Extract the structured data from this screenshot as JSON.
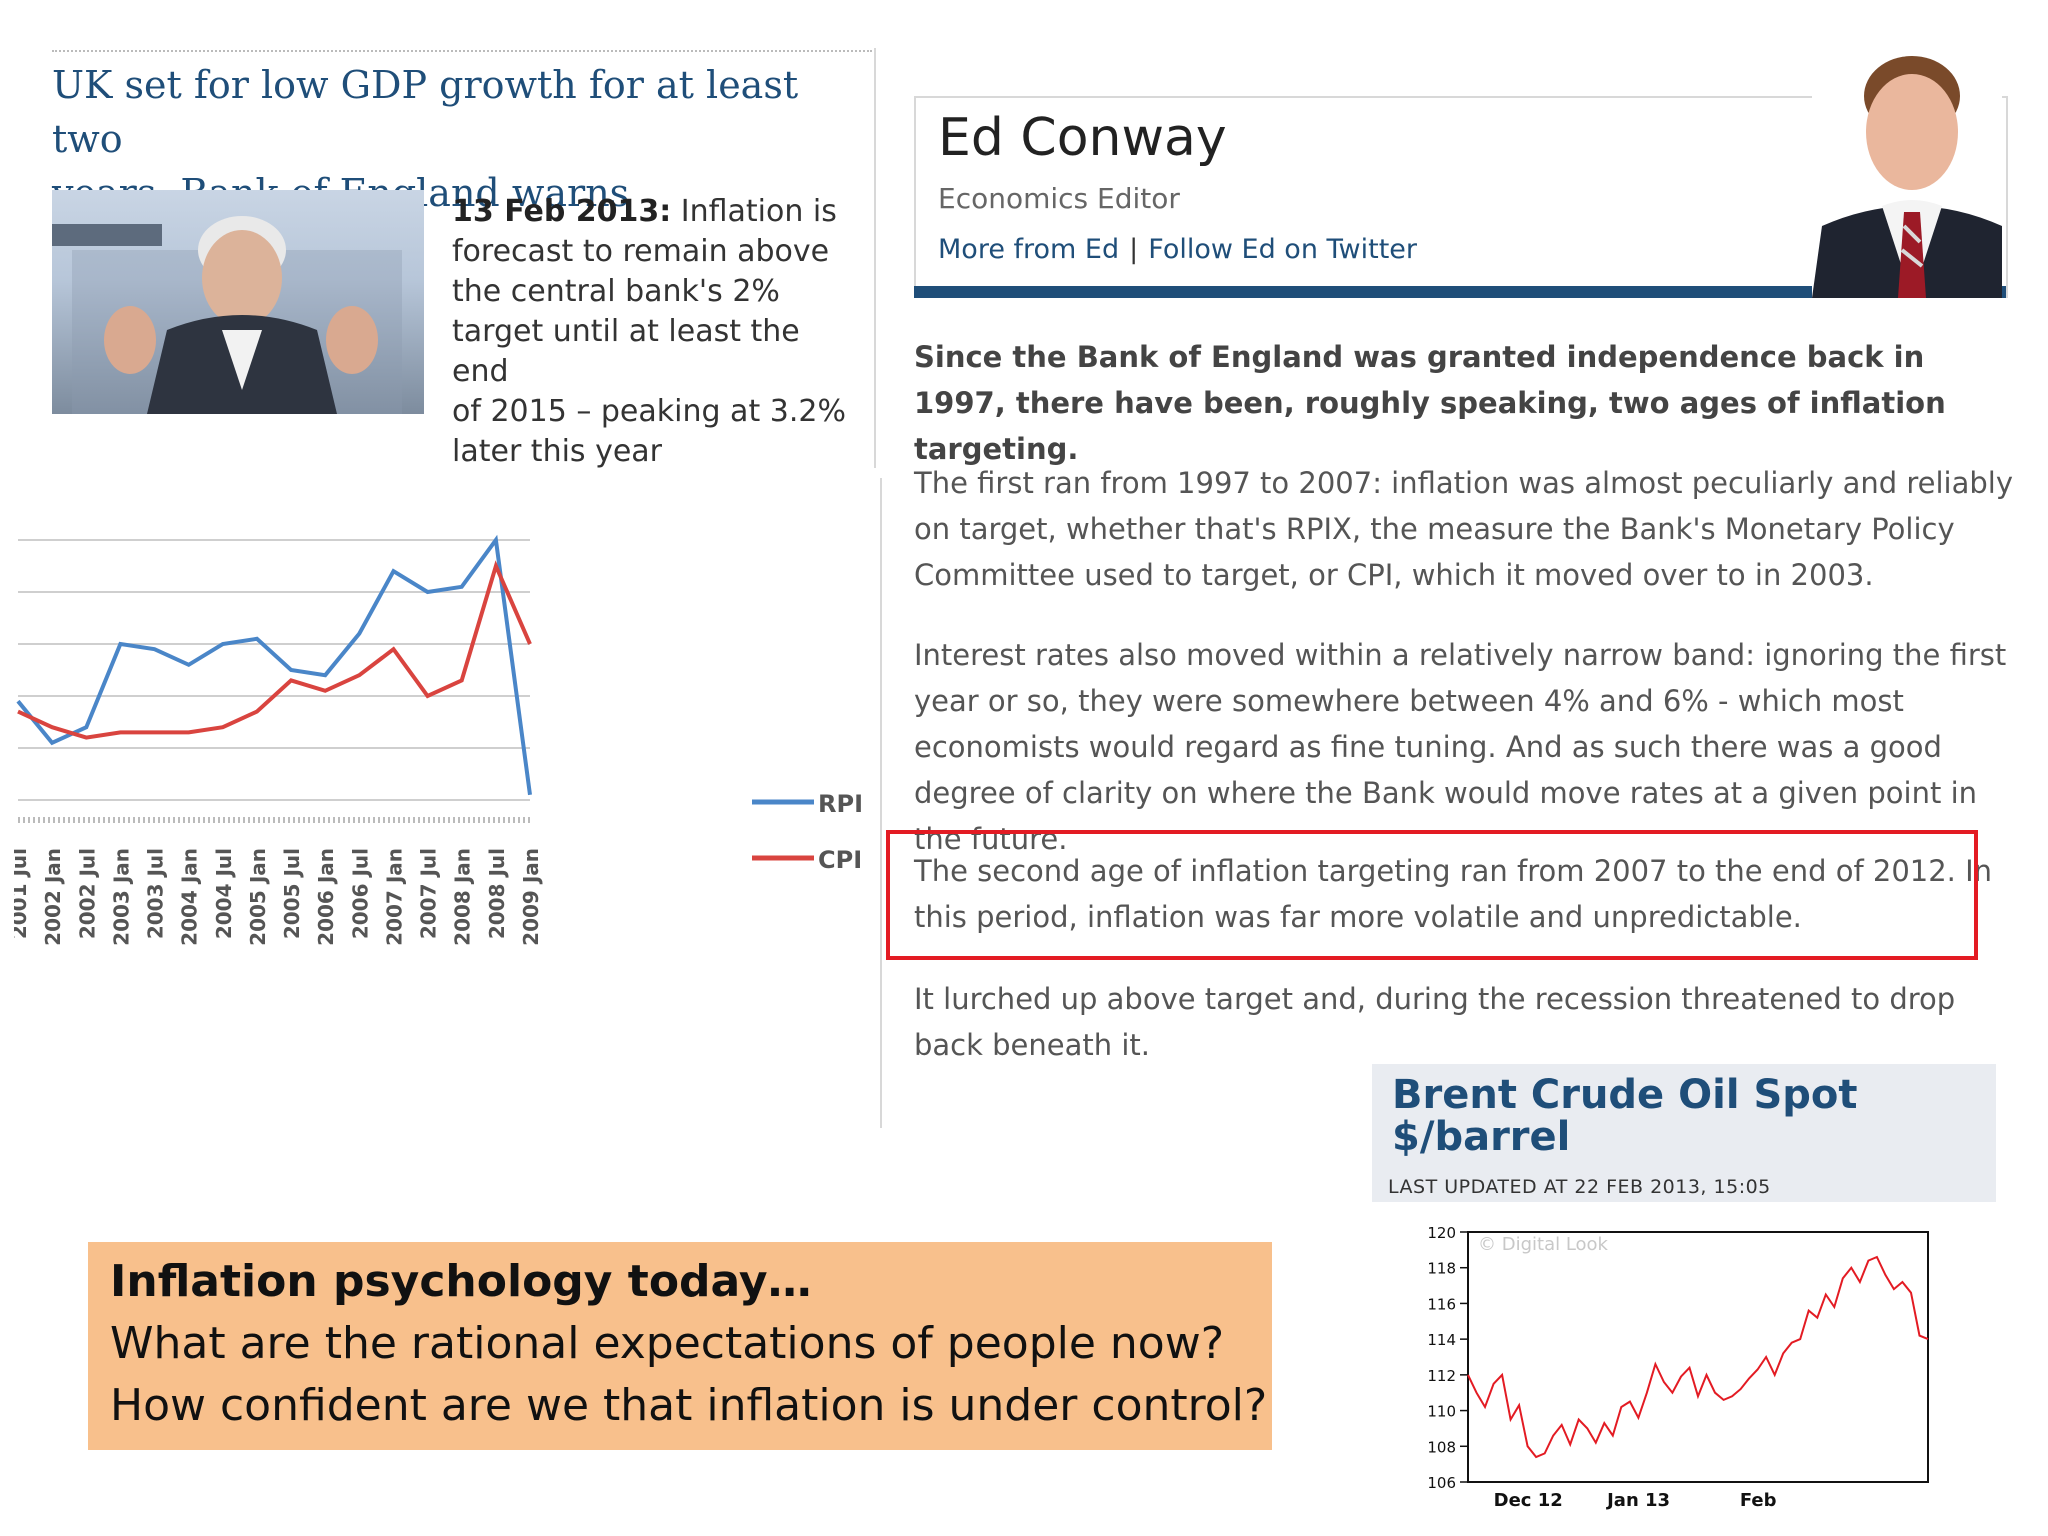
{
  "article": {
    "title_line1": "UK set for low GDP growth for at least two",
    "title_line2": "years, Bank of England warns",
    "summary_date": "13 Feb 2013:",
    "summary_l1": "Inflation is",
    "summary_l2": "forecast to remain above",
    "summary_l3": "the central bank's 2%",
    "summary_l4": "target until at least the end",
    "summary_l5": "of 2015 – peaking at 3.2%",
    "summary_l6": "later this year"
  },
  "rpi_chart": {
    "legend": [
      "RPI",
      "CPI"
    ],
    "x_ticks": [
      "2001 Jul",
      "2002 Jan",
      "2002 Jul",
      "2003 Jan",
      "2003 Jul",
      "2004 Jan",
      "2004 Jul",
      "2005 Jan",
      "2005 Jul",
      "2006 Jan",
      "2006 Jul",
      "2007 Jan",
      "2007 Jul",
      "2008 Jan",
      "2008 Jul",
      "2009 Jan"
    ],
    "colors": {
      "rpi": "#4a86c8",
      "cpi": "#d9443f"
    }
  },
  "author": {
    "name": "Ed Conway",
    "role": "Economics Editor",
    "link_more": "More from Ed",
    "link_sep": "|",
    "link_twitter": "Follow Ed on Twitter"
  },
  "body": {
    "lead": "Since the Bank of England was granted independence back in 1997, there have been, roughly speaking, two ages of inflation targeting.",
    "p1": "The first ran from 1997 to 2007: inflation was almost peculiarly and reliably on target, whether that's RPIX, the measure the Bank's Monetary Policy Committee used to target, or CPI, which it moved over to in 2003.",
    "p2": "Interest rates also moved within a relatively narrow band: ignoring the first year or so, they were somewhere between 4% and 6% - which most economists would regard as fine tuning. And as such there was a good degree of clarity on where the Bank would move rates at a given point in the future.",
    "p3": "The second age of inflation targeting ran from 2007 to the end of 2012. In this period, inflation was far more volatile and unpredictable.",
    "p4": "It lurched up above target and, during the recession threatened to drop back beneath it."
  },
  "oil": {
    "title": "Brent Crude Oil Spot $/barrel",
    "updated": "LAST UPDATED AT 22 FEB 2013, 15:05",
    "watermark": "© Digital Look",
    "y_ticks": [
      "120",
      "118",
      "116",
      "114",
      "112",
      "110",
      "108",
      "106"
    ],
    "x_ticks": [
      "Dec 12",
      "Jan 13",
      "Feb"
    ]
  },
  "chart_data": [
    {
      "type": "line",
      "legend": [
        "RPI",
        "CPI"
      ],
      "x": [
        "2001 Jul",
        "2002 Jan",
        "2002 Jul",
        "2003 Jan",
        "2003 Jul",
        "2004 Jan",
        "2004 Jul",
        "2005 Jan",
        "2005 Jul",
        "2006 Jan",
        "2006 Jul",
        "2007 Jan",
        "2007 Jul",
        "2008 Jan",
        "2008 Jul",
        "2009 Jan"
      ],
      "series": [
        {
          "name": "RPI",
          "values": [
            1.9,
            1.1,
            1.4,
            3.0,
            2.9,
            2.6,
            3.0,
            3.1,
            2.5,
            2.4,
            3.2,
            4.4,
            4.0,
            4.1,
            5.0,
            0.1
          ]
        },
        {
          "name": "CPI",
          "values": [
            1.7,
            1.4,
            1.2,
            1.3,
            1.3,
            1.3,
            1.4,
            1.7,
            2.3,
            2.1,
            2.4,
            2.9,
            2.0,
            2.3,
            4.5,
            3.0
          ]
        }
      ],
      "grid": true,
      "legend_position": "right"
    },
    {
      "type": "line",
      "title": "Brent Crude Oil Spot $/barrel",
      "x_ticks": [
        "Dec 12",
        "Jan 13",
        "Feb"
      ],
      "ylim": [
        106,
        120
      ],
      "series": [
        {
          "values": [
            112.0,
            111.0,
            110.2,
            111.5,
            112.0,
            109.5,
            110.3,
            108.0,
            107.4,
            107.6,
            108.6,
            109.2,
            108.1,
            109.5,
            109.0,
            108.2,
            109.3,
            108.6,
            110.2,
            110.5,
            109.6,
            111.0,
            112.6,
            111.6,
            111.0,
            111.9,
            112.4,
            110.8,
            112.0,
            111.0,
            110.6,
            110.8,
            111.2,
            111.8,
            112.3,
            113.0,
            112.0,
            113.2,
            113.8,
            114.0,
            115.6,
            115.2,
            116.5,
            115.8,
            117.4,
            118.0,
            117.2,
            118.4,
            118.6,
            117.6,
            116.8,
            117.2,
            116.6,
            114.2,
            114.0
          ]
        }
      ],
      "grid": false
    }
  ]
}
